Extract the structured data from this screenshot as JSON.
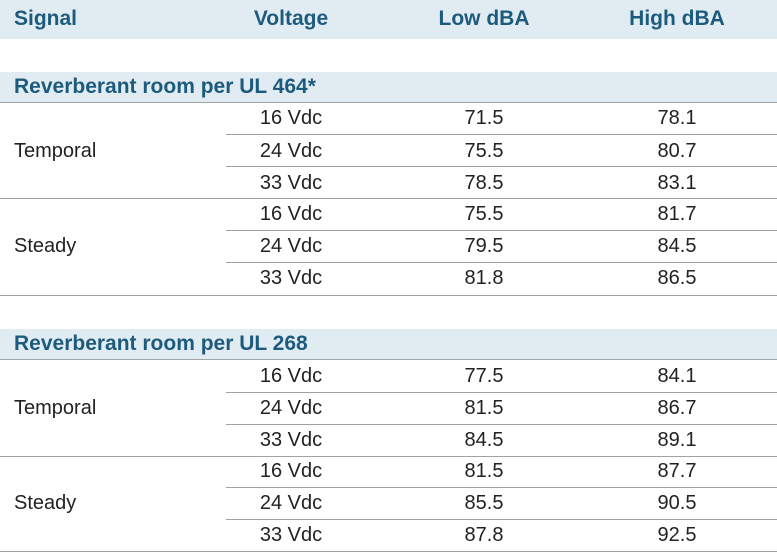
{
  "header": {
    "signal": "Signal",
    "voltage": "Voltage",
    "low": "Low dBA",
    "high": "High dBA"
  },
  "sections": [
    {
      "title": "Reverberant room per UL 464*",
      "groups": [
        {
          "signal": "Temporal",
          "rows": [
            {
              "voltage": "16 Vdc",
              "low": "71.5",
              "high": "78.1"
            },
            {
              "voltage": "24 Vdc",
              "low": "75.5",
              "high": "80.7"
            },
            {
              "voltage": "33 Vdc",
              "low": "78.5",
              "high": "83.1"
            }
          ]
        },
        {
          "signal": "Steady",
          "rows": [
            {
              "voltage": "16 Vdc",
              "low": "75.5",
              "high": "81.7"
            },
            {
              "voltage": "24 Vdc",
              "low": "79.5",
              "high": "84.5"
            },
            {
              "voltage": "33 Vdc",
              "low": "81.8",
              "high": "86.5"
            }
          ]
        }
      ]
    },
    {
      "title": "Reverberant room per UL 268",
      "groups": [
        {
          "signal": "Temporal",
          "rows": [
            {
              "voltage": "16 Vdc",
              "low": "77.5",
              "high": "84.1"
            },
            {
              "voltage": "24 Vdc",
              "low": "81.5",
              "high": "86.7"
            },
            {
              "voltage": "33 Vdc",
              "low": "84.5",
              "high": "89.1"
            }
          ]
        },
        {
          "signal": "Steady",
          "rows": [
            {
              "voltage": "16 Vdc",
              "low": "81.5",
              "high": "87.7"
            },
            {
              "voltage": "24 Vdc",
              "low": "85.5",
              "high": "90.5"
            },
            {
              "voltage": "33 Vdc",
              "low": "87.8",
              "high": "92.5"
            }
          ]
        }
      ]
    }
  ],
  "colors": {
    "header_background": "#e1ecf2",
    "header_text": "#1d5b7e",
    "body_text": "#222222",
    "rule": "#9fa3a6"
  }
}
